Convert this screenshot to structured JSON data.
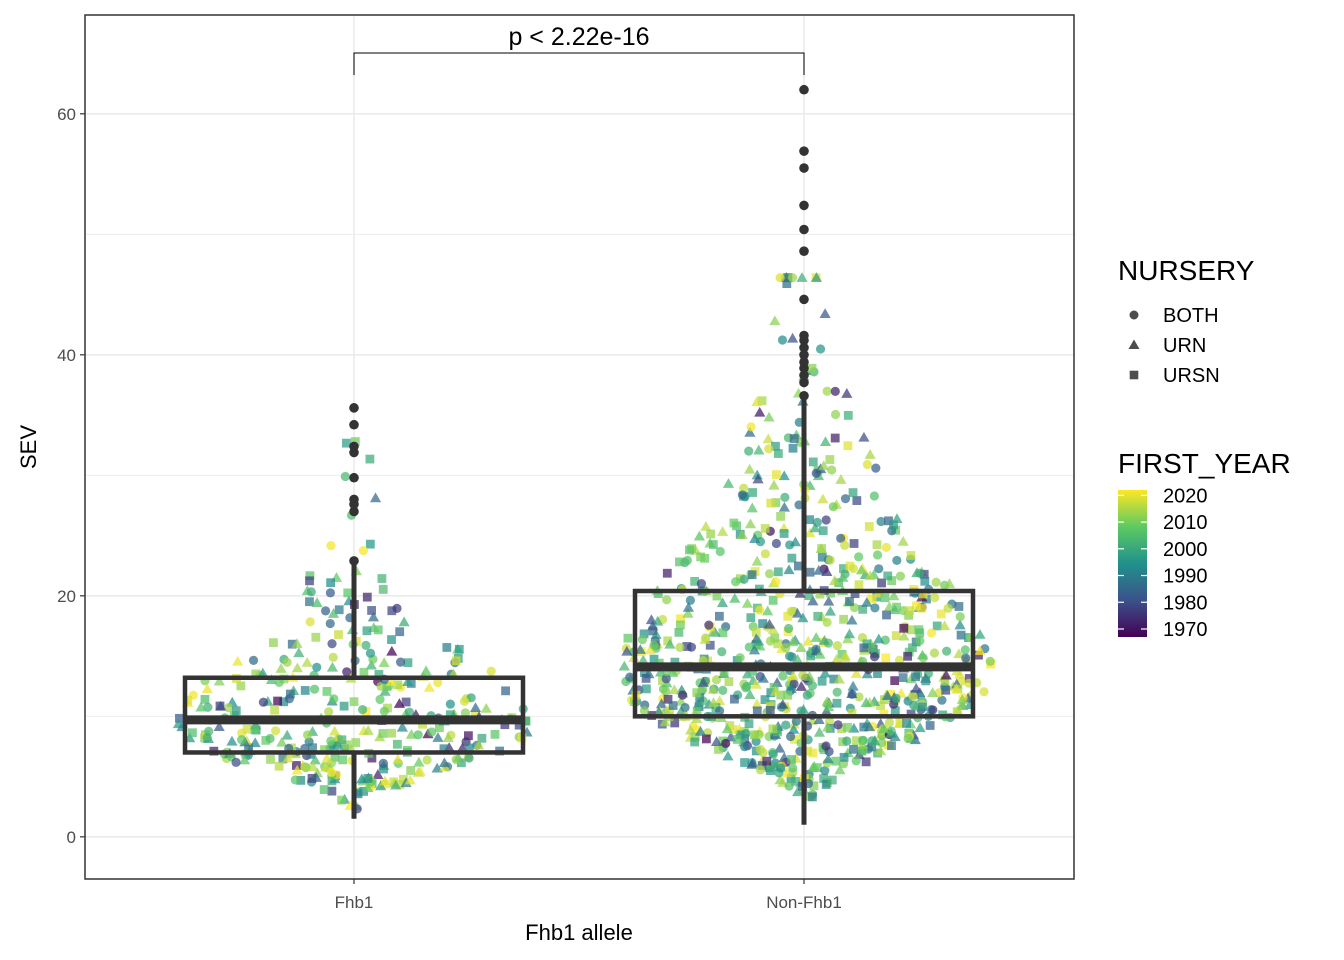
{
  "chart_data": {
    "type": "box-beeswarm",
    "xlabel": "Fhb1 allele",
    "ylabel": "SEV",
    "categories": [
      "Fhb1",
      "Non-Fhb1"
    ],
    "ylim": [
      -3.5,
      68.2
    ],
    "yticks": [
      0,
      20,
      40,
      60
    ],
    "grid": true,
    "annotation": {
      "text": "p < 2.22e-16",
      "between": [
        "Fhb1",
        "Non-Fhb1"
      ],
      "y": 65
    },
    "boxes": [
      {
        "category": "Fhb1",
        "min": 1.5,
        "q1": 7.0,
        "median": 9.7,
        "q3": 13.2,
        "max": 22.8,
        "outliers": [
          22.9,
          27.0,
          27.6,
          28.0,
          29.8,
          31.9,
          32.4,
          34.2,
          35.6
        ]
      },
      {
        "category": "Non-Fhb1",
        "min": 1.0,
        "q1": 10.0,
        "median": 14.1,
        "q3": 20.4,
        "max": 36.4,
        "outliers": [
          36.6,
          37.7,
          38.3,
          38.9,
          39.4,
          40.0,
          40.6,
          41.2,
          41.6,
          44.6,
          48.6,
          50.4,
          52.4,
          55.5,
          56.9,
          62.0
        ]
      }
    ],
    "shape_legend": {
      "title": "NURSERY",
      "items": [
        "BOTH",
        "URN",
        "URSN"
      ]
    },
    "color_legend": {
      "title": "FIRST_YEAR",
      "ticks": [
        "2020",
        "2010",
        "2000",
        "1990",
        "1980",
        "1970"
      ],
      "range": [
        1967,
        2022
      ],
      "palette": "viridis"
    },
    "colors": {
      "box": "#333333",
      "panel_border": "#333333",
      "grid": "#ebebeb",
      "viridis": [
        "#440154",
        "#3b528b",
        "#21918c",
        "#5ec962",
        "#fde725"
      ]
    },
    "series": [
      {
        "name": "Fhb1",
        "n": 360,
        "center": 1,
        "median": 9.7,
        "spread": 0.46
      },
      {
        "name": "Non-Fhb1",
        "n": 840,
        "center": 2,
        "median": 14.1,
        "spread": 0.52
      }
    ]
  }
}
